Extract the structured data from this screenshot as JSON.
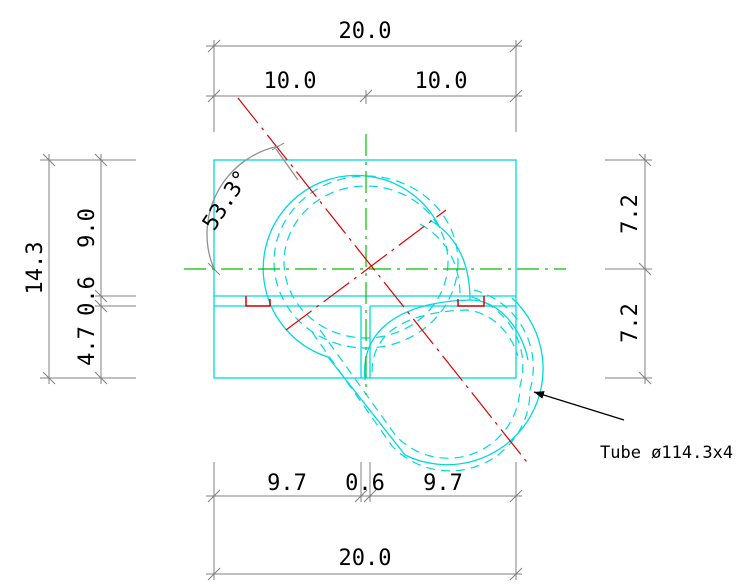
{
  "dimensions": {
    "top_total": "20.0",
    "top_left": "10.0",
    "top_right": "10.0",
    "left_total": "14.3",
    "left_upper": "9.0",
    "left_gap": "0.6",
    "left_lower": "4.7",
    "right_upper": "7.2",
    "right_lower": "7.2",
    "bottom_left": "9.7",
    "bottom_gap": "0.6",
    "bottom_right": "9.7",
    "bottom_total": "20.0",
    "angle": "53.3°"
  },
  "annotation": {
    "label": "Tube ø114.3x4"
  },
  "colors": {
    "object": "#00d8e0",
    "centerline_vertical_horizontal": "#00c000",
    "centerline_tube_axis": "#e00000",
    "dimension": "#808080"
  }
}
